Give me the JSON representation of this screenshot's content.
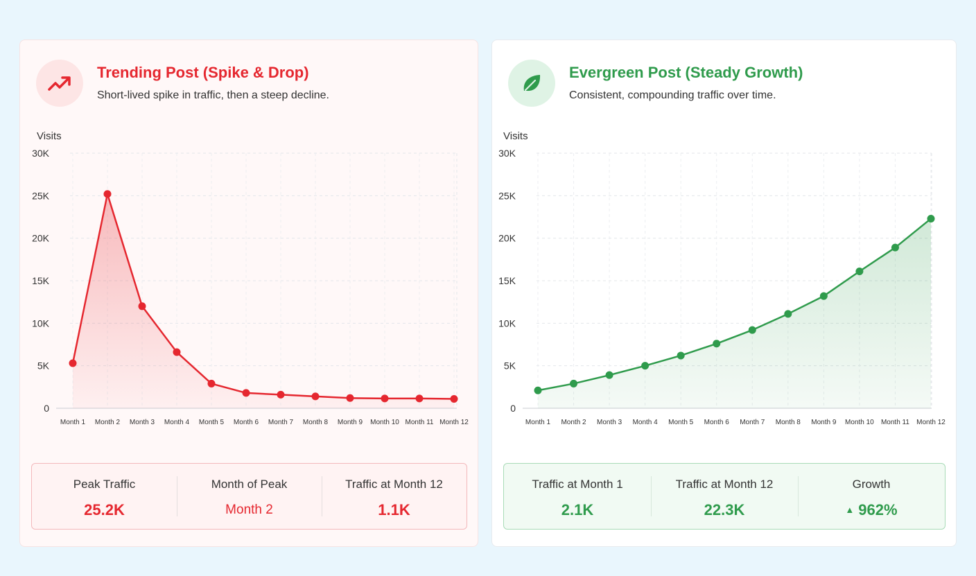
{
  "colors": {
    "trending": "#e5272f",
    "evergreen": "#2f9b4c"
  },
  "trending": {
    "icon": "trending-up-icon",
    "title": "Trending Post (Spike & Drop)",
    "subtitle": "Short-lived spike in traffic, then a steep decline.",
    "stats": [
      {
        "label": "Peak Traffic",
        "value": "25.2K"
      },
      {
        "label": "Month of Peak",
        "value": "Month 2"
      },
      {
        "label": "Traffic at Month 12",
        "value": "1.1K"
      }
    ]
  },
  "evergreen": {
    "icon": "leaf-icon",
    "title": "Evergreen Post (Steady Growth)",
    "subtitle": "Consistent, compounding traffic over time.",
    "stats": [
      {
        "label": "Traffic at Month 1",
        "value": "2.1K"
      },
      {
        "label": "Traffic at Month 12",
        "value": "22.3K"
      },
      {
        "label": "Growth",
        "value": "962%",
        "arrow": "▲"
      }
    ]
  },
  "chart_data": [
    {
      "type": "area",
      "ylabel": "Visits",
      "ylim": [
        0,
        30000
      ],
      "yticks": [
        "0",
        "5K",
        "10K",
        "15K",
        "20K",
        "25K",
        "30K"
      ],
      "categories": [
        "Month 1",
        "Month 2",
        "Month 3",
        "Month 4",
        "Month 5",
        "Month 6",
        "Month 7",
        "Month 8",
        "Month 9",
        "Month 10",
        "Month 11",
        "Month 12"
      ],
      "values": [
        5300,
        25200,
        12000,
        6600,
        2900,
        1800,
        1600,
        1400,
        1200,
        1150,
        1150,
        1100
      ],
      "grid": true
    },
    {
      "type": "area",
      "ylabel": "Visits",
      "ylim": [
        0,
        30000
      ],
      "yticks": [
        "0",
        "5K",
        "10K",
        "15K",
        "20K",
        "25K",
        "30K"
      ],
      "categories": [
        "Month 1",
        "Month 2",
        "Month 3",
        "Month 4",
        "Month 5",
        "Month 6",
        "Month 7",
        "Month 8",
        "Month 9",
        "Month 10",
        "Month 11",
        "Month 12"
      ],
      "values": [
        2100,
        2900,
        3900,
        5000,
        6200,
        7600,
        9200,
        11100,
        13200,
        16100,
        18900,
        22300
      ],
      "grid": true
    }
  ]
}
